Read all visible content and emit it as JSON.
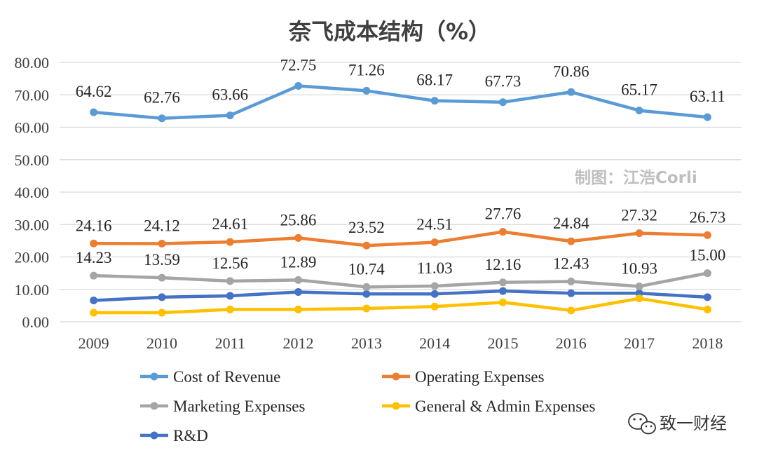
{
  "chart_data": {
    "type": "line",
    "title": "奈飞成本结构（%）",
    "categories": [
      "2009",
      "2010",
      "2011",
      "2012",
      "2013",
      "2014",
      "2015",
      "2016",
      "2017",
      "2018"
    ],
    "ylim": [
      0,
      80
    ],
    "yticks": [
      "0.00",
      "10.00",
      "20.00",
      "30.00",
      "40.00",
      "50.00",
      "60.00",
      "70.00",
      "80.00"
    ],
    "grid": true,
    "legend_position": "bottom",
    "series": [
      {
        "name": "Cost of Revenue",
        "color": "#5B9BD5",
        "labeled": true,
        "values": [
          64.62,
          62.76,
          63.66,
          72.75,
          71.26,
          68.17,
          67.73,
          70.86,
          65.17,
          63.11
        ]
      },
      {
        "name": "Operating Expenses",
        "color": "#ED7D31",
        "labeled": true,
        "values": [
          24.16,
          24.12,
          24.61,
          25.86,
          23.52,
          24.51,
          27.76,
          24.84,
          27.32,
          26.73
        ]
      },
      {
        "name": "Marketing Expenses",
        "color": "#A5A5A5",
        "labeled": true,
        "values": [
          14.23,
          13.59,
          12.56,
          12.89,
          10.74,
          11.03,
          12.16,
          12.43,
          10.93,
          15.0
        ]
      },
      {
        "name": "General & Admin Expenses",
        "color": "#FFC000",
        "labeled": false,
        "values": [
          2.8,
          2.8,
          3.8,
          3.8,
          4.1,
          4.7,
          6.0,
          3.5,
          7.2,
          3.8
        ]
      },
      {
        "name": "R&D",
        "color": "#4472C4",
        "labeled": false,
        "values": [
          6.6,
          7.6,
          8.0,
          9.2,
          8.6,
          8.6,
          9.5,
          8.8,
          8.8,
          7.6
        ]
      }
    ]
  },
  "watermark": "制图：江浩Corli",
  "credit": "致一财经",
  "credit_icon": "wechat-icon"
}
